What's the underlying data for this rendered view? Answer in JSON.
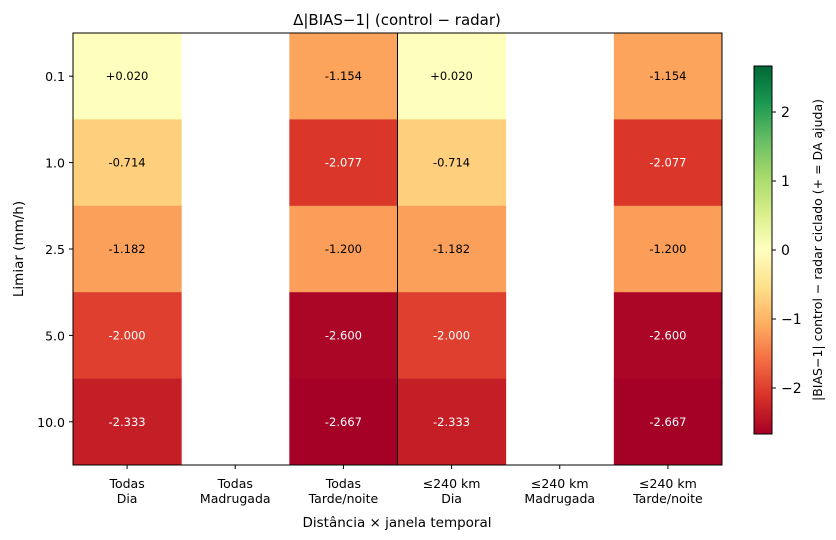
{
  "chart_data": {
    "type": "heatmap",
    "title": "Δ|BIAS−1|  (control − radar)",
    "xlabel": "Distância × janela temporal",
    "ylabel": "Limiar (mm/h)",
    "x_categories": [
      [
        "Todas",
        "Dia"
      ],
      [
        "Todas",
        "Madrugada"
      ],
      [
        "Todas",
        "Tarde/noite"
      ],
      [
        "≤240 km",
        "Dia"
      ],
      [
        "≤240 km",
        "Madrugada"
      ],
      [
        "≤240 km",
        "Tarde/noite"
      ]
    ],
    "y_categories": [
      "0.1",
      "1.0",
      "2.5",
      "5.0",
      "10.0"
    ],
    "values": [
      [
        0.02,
        null,
        -1.154,
        0.02,
        null,
        -1.154
      ],
      [
        -0.714,
        null,
        -2.077,
        -0.714,
        null,
        -2.077
      ],
      [
        -1.182,
        null,
        -1.2,
        -1.182,
        null,
        -1.2
      ],
      [
        -2.0,
        null,
        -2.6,
        -2.0,
        null,
        -2.6
      ],
      [
        -2.333,
        null,
        -2.667,
        -2.333,
        null,
        -2.667
      ]
    ],
    "cell_labels": [
      [
        "+0.020",
        "",
        "-1.154",
        "+0.020",
        "",
        "-1.154"
      ],
      [
        "-0.714",
        "",
        "-2.077",
        "-0.714",
        "",
        "-2.077"
      ],
      [
        "-1.182",
        "",
        "-1.200",
        "-1.182",
        "",
        "-1.200"
      ],
      [
        "-2.000",
        "",
        "-2.600",
        "-2.000",
        "",
        "-2.600"
      ],
      [
        "-2.333",
        "",
        "-2.667",
        "-2.333",
        "",
        "-2.667"
      ]
    ],
    "colormap": "RdYlGn",
    "vmin": -2.667,
    "vmax": 2.667,
    "colorbar": {
      "label": "|BIAS−1| control − radar ciclado  (+ = DA ajuda)",
      "ticks": [
        -2,
        -1,
        0,
        1,
        2
      ],
      "tick_labels": [
        "−2",
        "−1",
        "0",
        "1",
        "2"
      ]
    },
    "separator_after_column": 3,
    "grid": false
  }
}
